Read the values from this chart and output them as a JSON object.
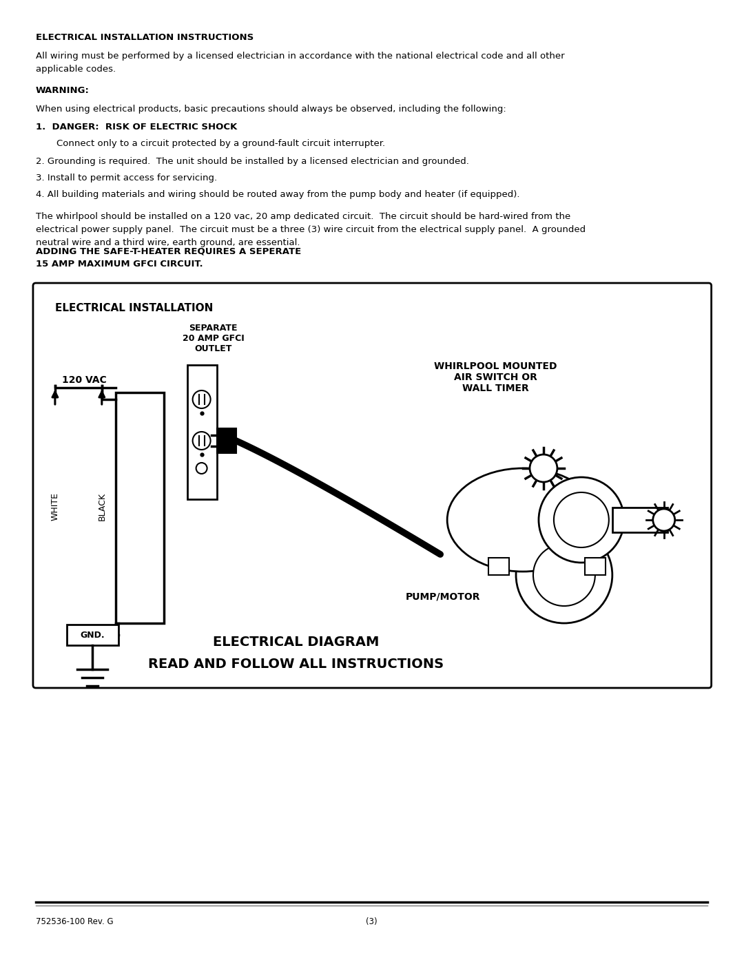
{
  "page_bg": "#ffffff",
  "title1": "ELECTRICAL INSTALLATION INSTRUCTIONS",
  "para1": "All wiring must be performed by a licensed electrician in accordance with the national electrical code and all other\napplicable codes.",
  "warning_label": "WARNING:",
  "para2": "When using electrical products, basic precautions should always be observed, including the following:",
  "item1_bold": "1.  DANGER:  RISK OF ELECTRIC SHOCK",
  "item1_text": "Connect only to a circuit protected by a ground-fault circuit interrupter.",
  "item2": "2. Grounding is required.  The unit should be installed by a licensed electrician and grounded.",
  "item3": "3. Install to permit access for servicing.",
  "item4": "4. All building materials and wiring should be routed away from the pump body and heater (if equipped).",
  "para3_normal": "The whirlpool should be installed on a 120 vac, 20 amp dedicated circuit.  The circuit should be hard-wired from the\nelectrical power supply panel.  The circuit must be a three (3) wire circuit from the electrical supply panel.  A grounded\nneutral wire and a third wire, earth ground, are essential. ",
  "para3_bold": "ADDING THE SAFE-T-HEATER REQUIRES A SEPERATE\n15 AMP MAXIMUM GFCI CIRCUIT.",
  "diagram_title": "ELECTRICAL INSTALLATION",
  "outlet_label": "SEPARATE\n20 AMP GFCI\nOUTLET",
  "vac_label": "120 VAC",
  "white_label": "WHITE",
  "black_label": "BLACK",
  "whirlpool_label": "WHIRLPOOL MOUNTED\nAIR SWITCH OR\nWALL TIMER",
  "pump_label": "PUMP/MOTOR",
  "gnd_label": "GND.",
  "diagram_bottom1": "ELECTRICAL DIAGRAM",
  "diagram_bottom2": "READ AND FOLLOW ALL INSTRUCTIONS",
  "footer_left": "752536-100 Rev. G",
  "footer_center": "(3)"
}
